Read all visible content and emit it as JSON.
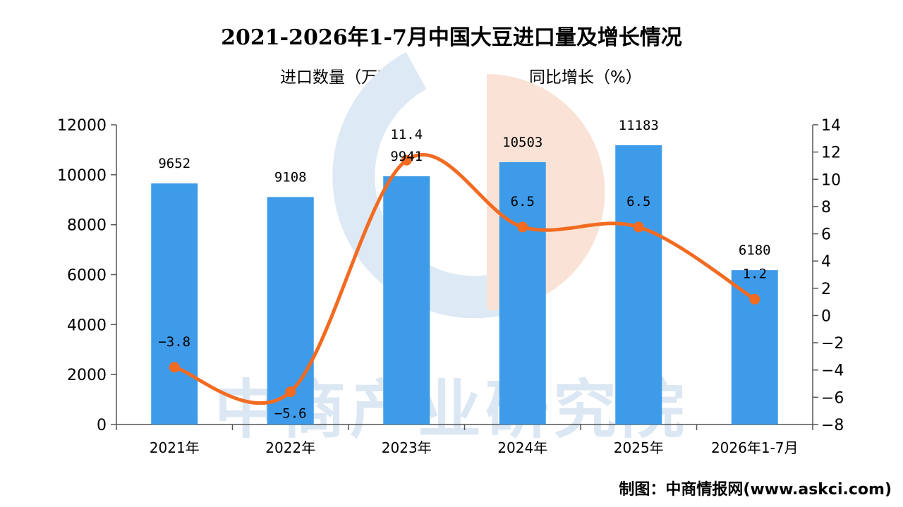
{
  "title": "2021-2026年1-7月中国大豆进口量及增长情况",
  "source": "制图：中商情报网(www.askci.com)",
  "watermark": "中商产业研究院",
  "colors": {
    "bar": "#3d9be9",
    "line": "#f26b21",
    "wm_blue": "#dde9f4",
    "wm_orange": "#fae3d6"
  },
  "chart_data": {
    "type": "bar",
    "categories": [
      "2021年",
      "2022年",
      "2023年",
      "2024年",
      "2025年",
      "2026年1-7月"
    ],
    "series": [
      {
        "name": "进口数量（万吨）",
        "type": "bar",
        "axis": "left",
        "values": [
          9652,
          9108,
          9941,
          10503,
          11183,
          6180
        ]
      },
      {
        "name": "同比增长（%）",
        "type": "line",
        "axis": "right",
        "values": [
          -3.8,
          -5.6,
          11.4,
          6.5,
          6.5,
          1.2
        ]
      }
    ],
    "ylim": [
      0,
      12000
    ],
    "yticks": [
      0,
      2000,
      4000,
      6000,
      8000,
      10000,
      12000
    ],
    "y2lim": [
      -8,
      14
    ],
    "y2ticks": [
      -8,
      -6,
      -4,
      -2,
      0,
      2,
      4,
      6,
      8,
      10,
      12,
      14
    ],
    "legend_position": "top"
  }
}
